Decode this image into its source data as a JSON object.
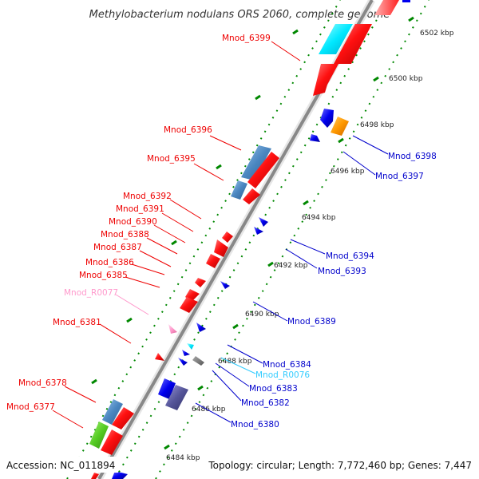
{
  "title": "Methylobacterium nodulans ORS 2060, complete genome",
  "footer": {
    "accession": "Accession: NC_011894",
    "topology": "Topology: circular; Length: 7,772,460 bp; Genes: 7,447"
  },
  "colors": {
    "forward": "#ff0000",
    "reverse": "#0000ee",
    "pseudo": "#ff99cc",
    "rna": "#33ccff",
    "backbone": "#888888",
    "ticks": "#008800"
  },
  "kbp_ticks": [
    "6502 kbp",
    "6500 kbp",
    "6498 kbp",
    "6496 kbp",
    "6494 kbp",
    "6492 kbp",
    "6490 kbp",
    "6488 kbp",
    "6486 kbp",
    "6484 kbp"
  ],
  "left_labels": [
    "Mnod_6399",
    "Mnod_6396",
    "Mnod_6395",
    "Mnod_6392",
    "Mnod_6391",
    "Mnod_6390",
    "Mnod_6388",
    "Mnod_6387",
    "Mnod_6386",
    "Mnod_6385",
    "Mnod_R0077",
    "Mnod_6381",
    "Mnod_6378",
    "Mnod_6377"
  ],
  "right_labels": [
    "Mnod_6398",
    "Mnod_6397",
    "Mnod_6394",
    "Mnod_6393",
    "Mnod_6389",
    "Mnod_6384",
    "Mnod_R0076",
    "Mnod_6383",
    "Mnod_6382",
    "Mnod_6380"
  ]
}
